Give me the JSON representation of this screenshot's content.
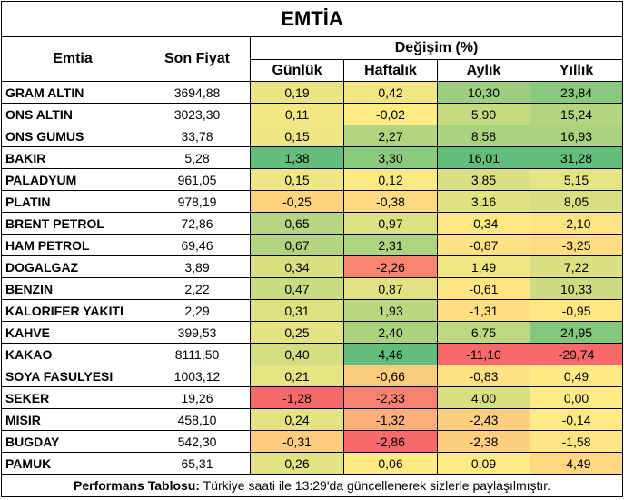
{
  "title": "EMTİA",
  "headers": {
    "commodity": "Emtia",
    "price": "Son Fiyat",
    "change_group": "Değişim (%)",
    "daily": "Günlük",
    "weekly": "Haftalık",
    "monthly": "Aylık",
    "yearly": "Yıllık"
  },
  "rows": [
    {
      "name": "GRAM ALTIN",
      "price": "3694,88",
      "d": "0,19",
      "w": "0,42",
      "m": "10,30",
      "y": "23,84"
    },
    {
      "name": "ONS ALTIN",
      "price": "3023,30",
      "d": "0,11",
      "w": "-0,02",
      "m": "5,90",
      "y": "15,24"
    },
    {
      "name": "ONS GUMUS",
      "price": "33,78",
      "d": "0,15",
      "w": "2,27",
      "m": "8,58",
      "y": "16,93"
    },
    {
      "name": "BAKIR",
      "price": "5,28",
      "d": "1,38",
      "w": "3,30",
      "m": "16,01",
      "y": "31,28"
    },
    {
      "name": "PALADYUM",
      "price": "961,05",
      "d": "0,15",
      "w": "0,12",
      "m": "3,85",
      "y": "5,15"
    },
    {
      "name": "PLATIN",
      "price": "978,19",
      "d": "-0,25",
      "w": "-0,38",
      "m": "3,16",
      "y": "8,05"
    },
    {
      "name": "BRENT PETROL",
      "price": "72,86",
      "d": "0,65",
      "w": "0,97",
      "m": "-0,34",
      "y": "-2,10"
    },
    {
      "name": "HAM PETROL",
      "price": "69,46",
      "d": "0,67",
      "w": "2,31",
      "m": "-0,87",
      "y": "-3,25"
    },
    {
      "name": "DOGALGAZ",
      "price": "3,89",
      "d": "0,34",
      "w": "-2,26",
      "m": "1,49",
      "y": "7,22"
    },
    {
      "name": "BENZIN",
      "price": "2,22",
      "d": "0,47",
      "w": "0,87",
      "m": "-0,61",
      "y": "10,33"
    },
    {
      "name": "KALORIFER YAKITI",
      "price": "2,29",
      "d": "0,31",
      "w": "1,93",
      "m": "-1,31",
      "y": "-0,95"
    },
    {
      "name": "KAHVE",
      "price": "399,53",
      "d": "0,25",
      "w": "2,40",
      "m": "6,75",
      "y": "24,95"
    },
    {
      "name": "KAKAO",
      "price": "8111,50",
      "d": "0,40",
      "w": "4,46",
      "m": "-11,10",
      "y": "-29,74"
    },
    {
      "name": "SOYA FASULYESI",
      "price": "1003,12",
      "d": "0,21",
      "w": "-0,66",
      "m": "-0,83",
      "y": "0,49"
    },
    {
      "name": "SEKER",
      "price": "19,26",
      "d": "-1,28",
      "w": "-2,33",
      "m": "4,00",
      "y": "0,00"
    },
    {
      "name": "MISIR",
      "price": "458,10",
      "d": "0,24",
      "w": "-1,32",
      "m": "-2,43",
      "y": "-0,14"
    },
    {
      "name": "BUGDAY",
      "price": "542,30",
      "d": "-0,31",
      "w": "-2,86",
      "m": "-2,38",
      "y": "-1,58"
    },
    {
      "name": "PAMUK",
      "price": "65,31",
      "d": "0,26",
      "w": "0,06",
      "m": "0,09",
      "y": "-4,49"
    }
  ],
  "footer": {
    "label": "Performans Tablosu:",
    "text": " Türkiye saati ile 13:29'da güncellenerek sizlerle paylaşılmıştır."
  }
}
